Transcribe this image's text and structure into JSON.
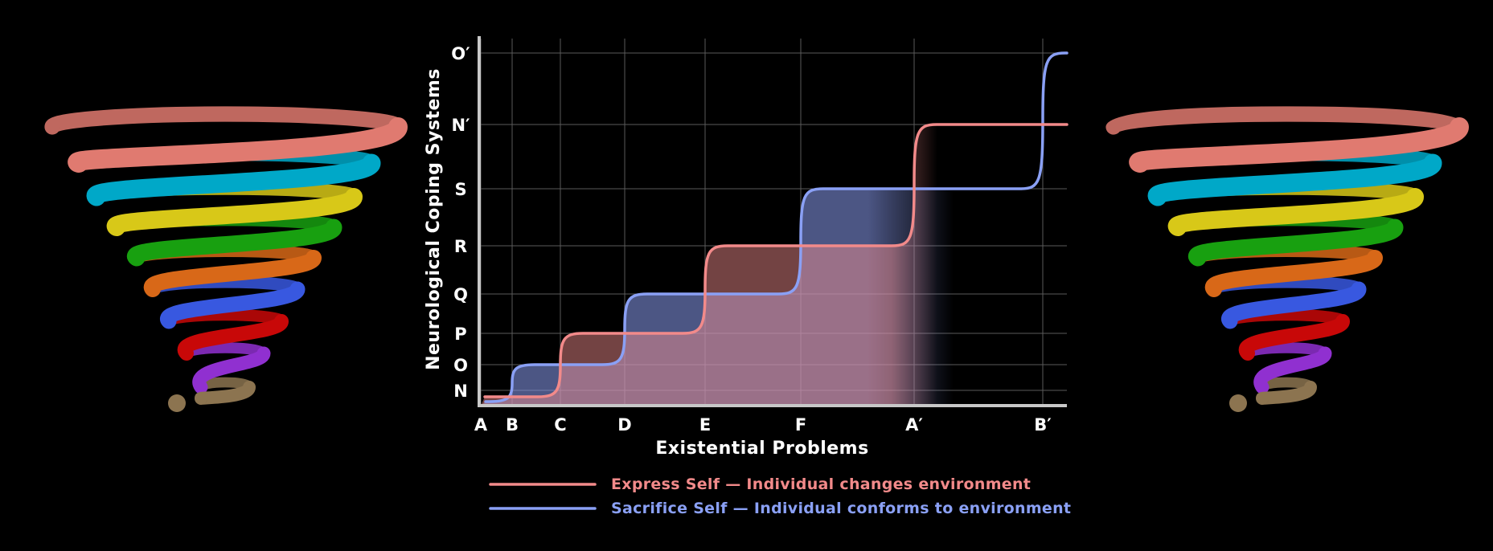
{
  "chart_data": {
    "type": "line",
    "title": "",
    "xlabel": "Existential Problems",
    "ylabel": "Neurological Coping Systems",
    "x_ticks": [
      "A",
      "B",
      "C",
      "D",
      "E",
      "F",
      "A′",
      "B′"
    ],
    "y_ticks": [
      "N",
      "O",
      "P",
      "Q",
      "R",
      "S",
      "N′",
      "O′"
    ],
    "grid": true,
    "legend_position": "bottom",
    "series": [
      {
        "name": "Express Self — Individual changes environment",
        "color": "#f28a8a",
        "steps": [
          {
            "x": "A",
            "y": "N"
          },
          {
            "x": "C",
            "y": "P"
          },
          {
            "x": "E",
            "y": "R"
          },
          {
            "x": "A′",
            "y": "N′"
          }
        ]
      },
      {
        "name": "Sacrifice Self — Individual conforms to environment",
        "color": "#8aa0f5",
        "steps": [
          {
            "x": "B",
            "y": "O"
          },
          {
            "x": "D",
            "y": "Q"
          },
          {
            "x": "F",
            "y": "S"
          },
          {
            "x": "B′",
            "y": "O′"
          }
        ]
      }
    ],
    "spiral_colors": [
      "#e07a70",
      "#00a8c8",
      "#d8c818",
      "#18a010",
      "#d86818",
      "#3858e0",
      "#c80808",
      "#9030d0",
      "#8c7450"
    ]
  }
}
